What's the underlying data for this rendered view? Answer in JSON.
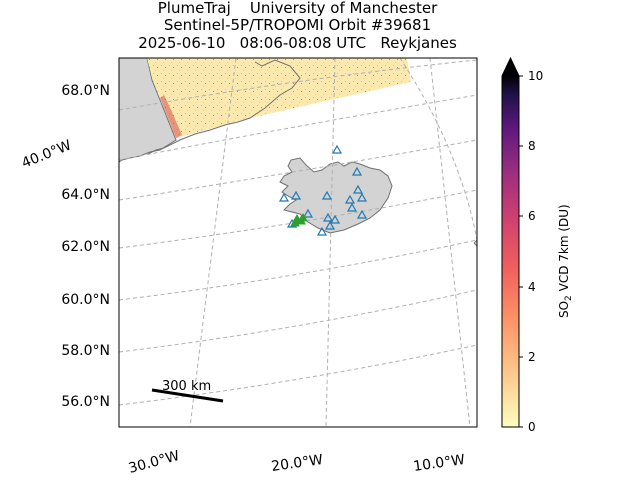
{
  "title": {
    "line1": "PlumeTraj    University of Manchester",
    "line2": "Sentinel-5P/TROPOMI Orbit #39681",
    "line3": "2025-06-10   08:06-08:08 UTC   Reykjanes"
  },
  "map": {
    "lat_labels": [
      "68.0°N",
      "64.0°N",
      "62.0°N",
      "60.0°N",
      "58.0°N",
      "56.0°N"
    ],
    "lon_labels": [
      "30.0°W",
      "20.0°W",
      "10.0°W"
    ],
    "diag_label": "40.0°W",
    "scale_bar_label": "300 km",
    "gridlines": true,
    "land_color": "#d3d3d3",
    "coast_color": "#707070",
    "grid_color": "#b0b0b0",
    "volcano_marker": "triangle-open-blue",
    "source_marker": "triangle-green"
  },
  "colorbar": {
    "label_main": "SO",
    "label_sub": "2",
    "label_rest": " VCD 7km (DU)",
    "ticks": [
      "0",
      "2",
      "4",
      "6",
      "8",
      "10"
    ],
    "min": 0,
    "max": 10,
    "colormap": "magma_r",
    "extend": "max"
  }
}
